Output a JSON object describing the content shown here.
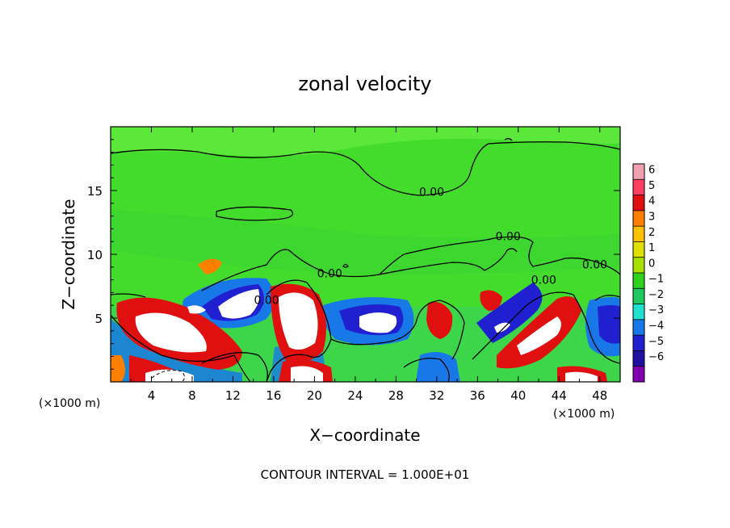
{
  "chart_data": {
    "type": "heatmap",
    "title": "zonal velocity",
    "xlabel": "X−coordinate",
    "ylabel": "Z−coordinate",
    "x_unit_left": "(×1000 m)",
    "x_unit_right": "(×1000 m)",
    "xlim": [
      0,
      50
    ],
    "ylim": [
      0,
      20
    ],
    "xticks": [
      4,
      8,
      12,
      16,
      20,
      24,
      28,
      32,
      36,
      40,
      44,
      48
    ],
    "yticks": [
      5,
      10,
      15
    ],
    "footer": "CONTOUR INTERVAL = 1.000E+01",
    "contour_labels": [
      {
        "text": "0.00",
        "x": 31.5,
        "z": 14.6
      },
      {
        "text": "0.00",
        "x": 39.0,
        "z": 11.1
      },
      {
        "text": "0.00",
        "x": 21.5,
        "z": 8.2
      },
      {
        "text": "0.00",
        "x": 15.3,
        "z": 6.1
      },
      {
        "text": "0.00",
        "x": 42.5,
        "z": 7.7
      },
      {
        "text": "0.00",
        "x": 47.5,
        "z": 8.9
      }
    ],
    "colorbar": {
      "ticks": [
        "6",
        "5",
        "4",
        "3",
        "2",
        "1",
        "0",
        "−1",
        "−2",
        "−3",
        "−4",
        "−5",
        "−6"
      ],
      "range": [
        -6,
        6
      ],
      "colors": [
        "#f0a0b0",
        "#ff4060",
        "#e01010",
        "#ff8000",
        "#ffc000",
        "#e0e000",
        "#a8e000",
        "#30d020",
        "#20c860",
        "#20e0d0",
        "#1878e8",
        "#2020d0",
        "#2010a0",
        "#8000b0"
      ]
    },
    "features": [
      {
        "kind": "positive-core",
        "x": 4.5,
        "z": 4.3,
        "value": 8
      },
      {
        "kind": "positive-core",
        "x": 18.8,
        "z": 4.9,
        "value": 8
      },
      {
        "kind": "positive-core",
        "x": 32.8,
        "z": 5.2,
        "value": 5
      },
      {
        "kind": "positive-core",
        "x": 44.2,
        "z": 4.2,
        "value": 6
      },
      {
        "kind": "positive-core",
        "x": 37.8,
        "z": 6.1,
        "value": 4
      },
      {
        "kind": "positive-core",
        "x": 9.6,
        "z": 9.3,
        "value": 3
      },
      {
        "kind": "negative-core",
        "x": 12.8,
        "z": 6.1,
        "value": -8
      },
      {
        "kind": "negative-core",
        "x": 27.6,
        "z": 4.6,
        "value": -8
      },
      {
        "kind": "negative-core",
        "x": 48.8,
        "z": 4.5,
        "value": -5
      },
      {
        "kind": "negative-core",
        "x": 40.0,
        "z": 5.4,
        "value": -4
      }
    ]
  }
}
